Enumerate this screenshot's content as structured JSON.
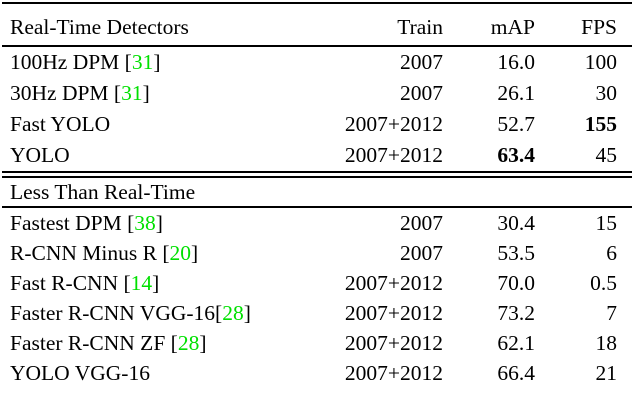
{
  "table": {
    "columns": [
      "Real-Time Detectors",
      "Train",
      "mAP",
      "FPS"
    ],
    "accent_green": "#00e000",
    "section1": {
      "rows": [
        {
          "pre": "100Hz DPM [",
          "cite": "31",
          "post": "]",
          "train": "2007",
          "map": "16.0",
          "fps": "100"
        },
        {
          "pre": "30Hz DPM [",
          "cite": "31",
          "post": "]",
          "train": "2007",
          "map": "26.1",
          "fps": "30"
        },
        {
          "pre": "Fast YOLO",
          "train": "2007+2012",
          "map": "52.7",
          "fps": "155"
        },
        {
          "pre": "YOLO",
          "train": "2007+2012",
          "map": "63.4",
          "fps": "45"
        }
      ]
    },
    "section2": {
      "title": "Less Than Real-Time",
      "rows": [
        {
          "pre": "Fastest DPM [",
          "cite": "38",
          "post": "]",
          "train": "2007",
          "map": "30.4",
          "fps": "15"
        },
        {
          "pre": "R-CNN Minus R [",
          "cite": "20",
          "post": "]",
          "train": "2007",
          "map": "53.5",
          "fps": "6"
        },
        {
          "pre": "Fast R-CNN [",
          "cite": "14",
          "post": "]",
          "train": "2007+2012",
          "map": "70.0",
          "fps": "0.5"
        },
        {
          "pre": "Faster R-CNN VGG-16[",
          "cite": "28",
          "post": "]",
          "train": "2007+2012",
          "map": "73.2",
          "fps": "7"
        },
        {
          "pre": "Faster R-CNN ZF [",
          "cite": "28",
          "post": "]",
          "train": "2007+2012",
          "map": "62.1",
          "fps": "18"
        },
        {
          "pre": "YOLO VGG-16",
          "train": "2007+2012",
          "map": "66.4",
          "fps": "21"
        }
      ]
    }
  }
}
